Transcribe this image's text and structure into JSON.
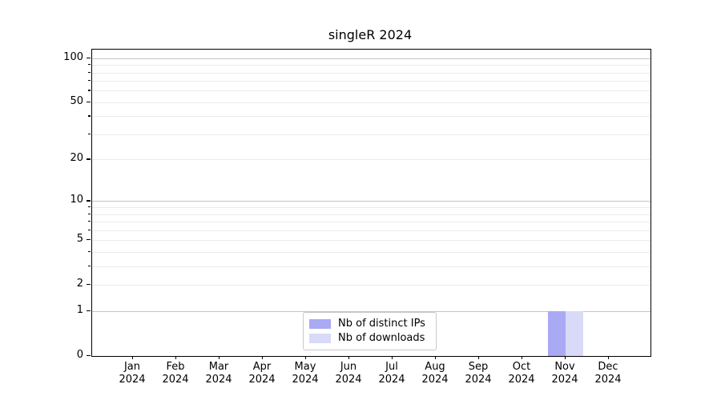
{
  "chart_data": {
    "type": "bar",
    "title": "singleR 2024",
    "categories": [
      "Jan 2024",
      "Feb 2024",
      "Mar 2024",
      "Apr 2024",
      "May 2024",
      "Jun 2024",
      "Jul 2024",
      "Aug 2024",
      "Sep 2024",
      "Oct 2024",
      "Nov 2024",
      "Dec 2024"
    ],
    "series": [
      {
        "name": "Nb of distinct IPs",
        "color": "#a9a9f4",
        "values": [
          0,
          0,
          0,
          0,
          0,
          0,
          0,
          0,
          0,
          0,
          1,
          0
        ]
      },
      {
        "name": "Nb of downloads",
        "color": "#d9d9f8",
        "values": [
          0,
          0,
          0,
          0,
          0,
          0,
          0,
          0,
          0,
          0,
          1,
          0
        ]
      }
    ],
    "yscale": "log1p",
    "ylim": [
      0,
      115
    ],
    "yticks_labeled": [
      0,
      1,
      2,
      5,
      10,
      20,
      50,
      100
    ],
    "yticks_major_grid": [
      1,
      10,
      100
    ],
    "yticks_minor_grid": [
      2,
      3,
      4,
      5,
      6,
      7,
      8,
      9,
      20,
      30,
      40,
      50,
      60,
      70,
      80,
      90
    ],
    "grid": true,
    "legend_position": "lower center"
  },
  "colors": {
    "major_grid": "#c4c4c4",
    "minor_grid": "#ebebeb",
    "spine": "#000000",
    "background": "#ffffff",
    "legend_border": "#c9c9c9"
  }
}
